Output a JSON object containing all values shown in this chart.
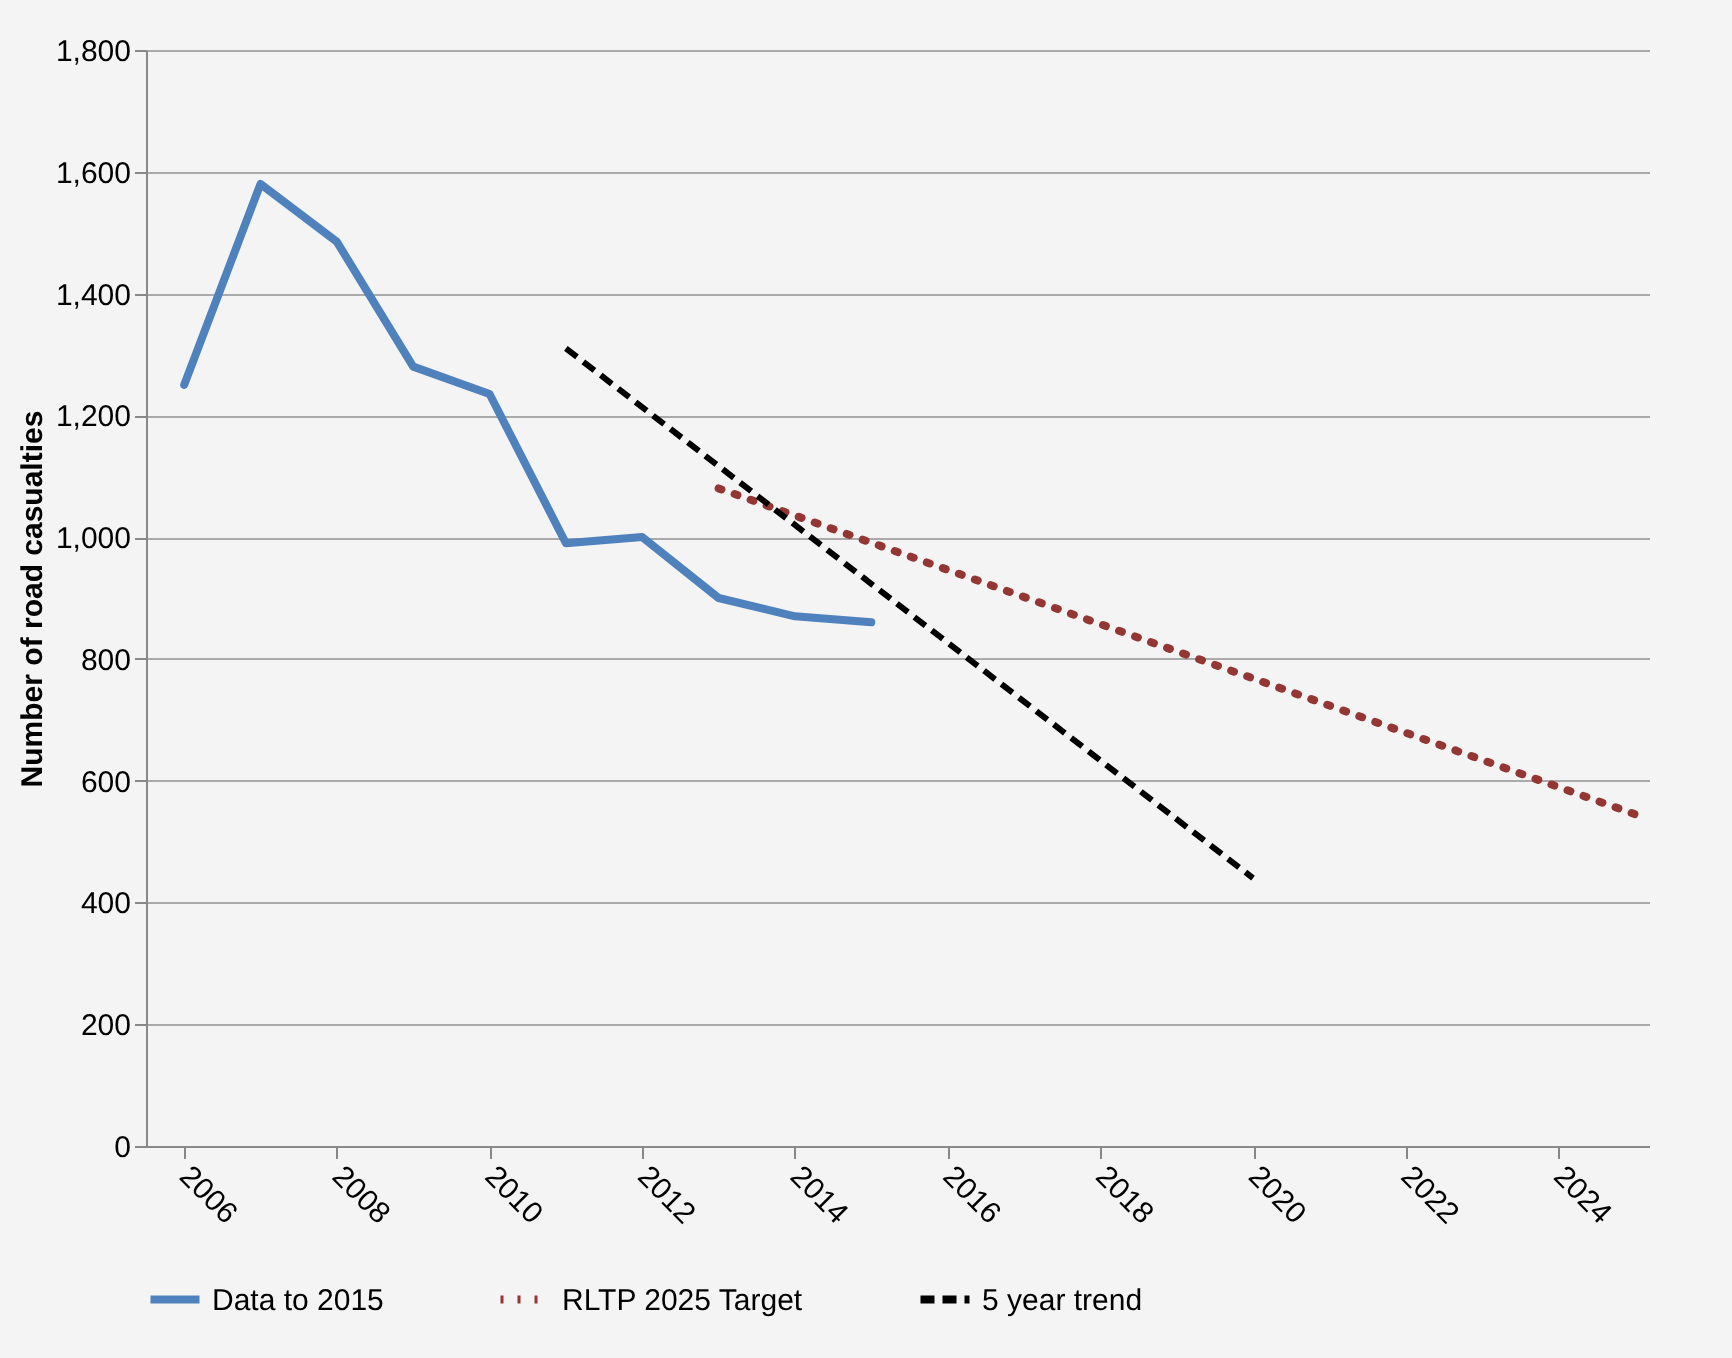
{
  "chart_data": {
    "type": "line",
    "ylabel": "Number of  road casualties",
    "xlim": [
      2005.5,
      2025.2
    ],
    "xticks": [
      2006,
      2008,
      2010,
      2012,
      2014,
      2016,
      2018,
      2020,
      2022,
      2024
    ],
    "ylim": [
      0,
      1800
    ],
    "yticks": [
      0,
      200,
      400,
      600,
      800,
      {
        "value": 1000,
        "label": "1,000"
      },
      {
        "value": 1200,
        "label": "1,200"
      },
      {
        "value": 1400,
        "label": "1,400"
      },
      {
        "value": 1600,
        "label": "1,600"
      },
      {
        "value": 1800,
        "label": "1,800"
      }
    ],
    "grid": "y",
    "legend": "bottom",
    "marker": "none",
    "series": [
      {
        "name": "Data to 2015",
        "color": "#4f81bd",
        "line_style": "solid",
        "x": [
          2006,
          2007,
          2008,
          2009,
          2010,
          2011,
          2012,
          2013,
          2014,
          2015
        ],
        "values": [
          1250,
          1580,
          1485,
          1280,
          1235,
          990,
          1000,
          900,
          870,
          860
        ]
      },
      {
        "name": "RLTP 2025 Target",
        "color": "#943634",
        "line_style": "dotted",
        "x": [
          2013,
          2025
        ],
        "values": [
          1080,
          545
        ]
      },
      {
        "name": "5 year trend",
        "color": "#000000",
        "line_style": "dashed",
        "x": [
          2011,
          2020
        ],
        "values": [
          1310,
          440
        ]
      }
    ]
  }
}
